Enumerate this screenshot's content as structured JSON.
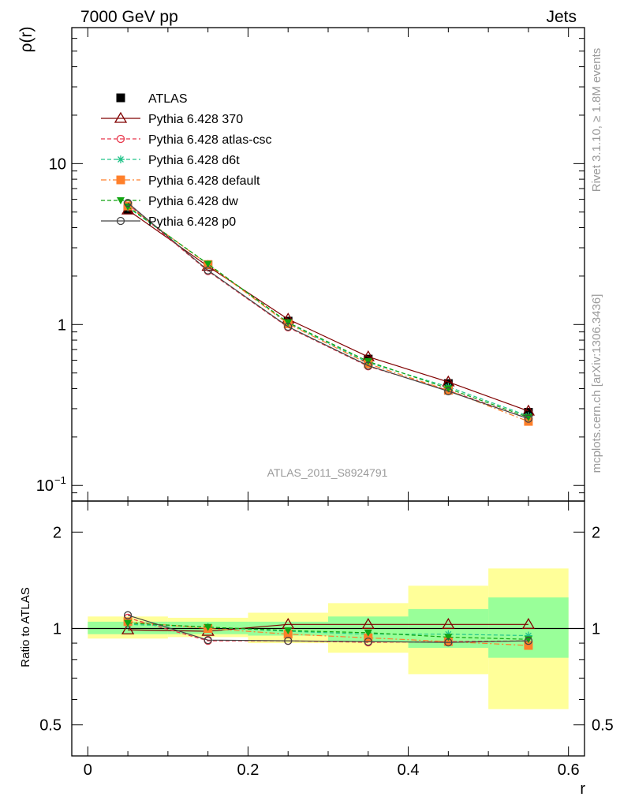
{
  "header": {
    "left": "7000 GeV pp",
    "right": "Jets"
  },
  "side_labels": {
    "rivet": "Rivet 3.1.10, ≥ 1.8M events",
    "mcplots": "mcplots.cern.ch [arXiv:1306.3436]"
  },
  "analysis_id": "ATLAS_2011_S8924791",
  "chart_data": [
    {
      "type": "line",
      "panel": "main",
      "ylabel": "ρ(r)",
      "yscale": "log",
      "ylim": [
        0.08,
        70
      ],
      "xlim": [
        -0.02,
        0.62
      ],
      "y_ticks": [
        {
          "v": 0.1,
          "label": "10",
          "exp": "−1"
        },
        {
          "v": 1,
          "label": "1"
        },
        {
          "v": 10,
          "label": "10"
        }
      ],
      "x": [
        0.05,
        0.15,
        0.25,
        0.35,
        0.45,
        0.55
      ],
      "legend_position": "top-left",
      "series": [
        {
          "name": "ATLAS",
          "values": [
            5.2,
            2.35,
            1.05,
            0.61,
            0.43,
            0.285
          ],
          "color": "#000000",
          "marker": "square-filled",
          "line": "none"
        },
        {
          "name": "Pythia 6.428 370",
          "values": [
            5.15,
            2.3,
            1.08,
            0.63,
            0.44,
            0.29
          ],
          "color": "#800000",
          "marker": "triangle-open",
          "line": "solid"
        },
        {
          "name": "Pythia 6.428 atlas-csc",
          "values": [
            5.6,
            2.15,
            0.96,
            0.55,
            0.39,
            0.26
          ],
          "color": "#e8364a",
          "marker": "circle-open",
          "line": "dashed"
        },
        {
          "name": "Pythia 6.428 d6t",
          "values": [
            5.35,
            2.38,
            1.02,
            0.58,
            0.41,
            0.27
          ],
          "color": "#22c389",
          "marker": "asterisk",
          "line": "dashed"
        },
        {
          "name": "Pythia 6.428 default",
          "values": [
            5.45,
            2.36,
            1.01,
            0.57,
            0.39,
            0.25
          ],
          "color": "#ff7f2a",
          "marker": "square-filled",
          "line": "dashdot"
        },
        {
          "name": "Pythia 6.428 dw",
          "values": [
            5.4,
            2.38,
            1.03,
            0.59,
            0.4,
            0.265
          ],
          "color": "#11a511",
          "marker": "triangle-down-filled",
          "line": "dashed"
        },
        {
          "name": "Pythia 6.428 p0",
          "values": [
            5.7,
            2.17,
            0.97,
            0.555,
            0.385,
            0.26
          ],
          "color": "#444444",
          "marker": "circle-open",
          "line": "solid"
        }
      ]
    },
    {
      "type": "line",
      "panel": "ratio",
      "ylabel": "Ratio to ATLAS",
      "xlabel": "r",
      "yscale": "log",
      "ylim": [
        0.4,
        2.5
      ],
      "xlim": [
        -0.02,
        0.62
      ],
      "y_ticks": [
        0.5,
        1,
        2
      ],
      "x_ticks": [
        0,
        0.2,
        0.4,
        0.6
      ],
      "x": [
        0.05,
        0.15,
        0.25,
        0.35,
        0.45,
        0.55
      ],
      "bins": [
        [
          0.0,
          0.1
        ],
        [
          0.1,
          0.2
        ],
        [
          0.2,
          0.3
        ],
        [
          0.3,
          0.4
        ],
        [
          0.4,
          0.5
        ],
        [
          0.5,
          0.6
        ]
      ],
      "band_outer": {
        "color": "#ffff99",
        "low": [
          0.93,
          0.94,
          0.9,
          0.84,
          0.72,
          0.56
        ],
        "high": [
          1.09,
          1.08,
          1.12,
          1.2,
          1.36,
          1.54
        ]
      },
      "band_inner": {
        "color": "#99ff99",
        "low": [
          0.96,
          0.96,
          0.95,
          0.91,
          0.87,
          0.81
        ],
        "high": [
          1.05,
          1.05,
          1.05,
          1.09,
          1.15,
          1.25
        ]
      },
      "series": [
        {
          "name": "Pythia 6.428 370",
          "values": [
            0.99,
            0.98,
            1.03,
            1.03,
            1.03,
            1.03
          ],
          "color": "#800000",
          "marker": "triangle-open",
          "line": "solid"
        },
        {
          "name": "Pythia 6.428 atlas-csc",
          "values": [
            1.08,
            0.915,
            0.915,
            0.905,
            0.91,
            0.915
          ],
          "color": "#e8364a",
          "marker": "circle-open",
          "line": "dashed"
        },
        {
          "name": "Pythia 6.428 d6t",
          "values": [
            1.03,
            1.01,
            0.98,
            0.96,
            0.96,
            0.95
          ],
          "color": "#22c389",
          "marker": "asterisk",
          "line": "dashed"
        },
        {
          "name": "Pythia 6.428 default",
          "values": [
            1.05,
            1.0,
            0.96,
            0.935,
            0.91,
            0.885
          ],
          "color": "#ff7f2a",
          "marker": "square-filled",
          "line": "dashdot"
        },
        {
          "name": "Pythia 6.428 dw",
          "values": [
            1.04,
            1.01,
            0.985,
            0.97,
            0.94,
            0.925
          ],
          "color": "#11a511",
          "marker": "triangle-down-filled",
          "line": "dashed"
        },
        {
          "name": "Pythia 6.428 p0",
          "values": [
            1.1,
            0.92,
            0.915,
            0.91,
            0.905,
            0.915
          ],
          "color": "#444444",
          "marker": "circle-open",
          "line": "solid"
        }
      ]
    }
  ]
}
